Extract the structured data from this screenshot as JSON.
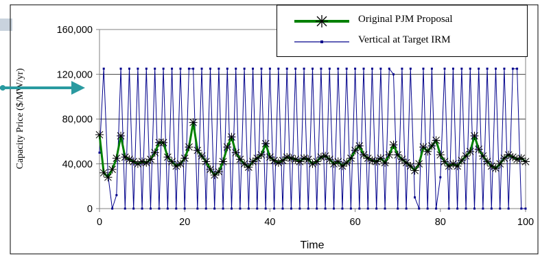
{
  "chart_data": {
    "type": "line",
    "title": "",
    "xlabel": "Time",
    "ylabel": "Capacity Price ($/MW/yr)",
    "xlim": [
      0,
      100
    ],
    "ylim": [
      0,
      160000
    ],
    "x_ticks": [
      "0",
      "20",
      "40",
      "60",
      "80",
      "100"
    ],
    "y_ticks": [
      "0",
      "40,000",
      "80,000",
      "120,000",
      "160,000"
    ],
    "grid": "horizontal",
    "legend_position": "top-right",
    "series": [
      {
        "name": "Original PJM Proposal",
        "color": "#008000",
        "marker": "asterisk",
        "x": [
          0,
          1,
          2,
          3,
          4,
          5,
          6,
          7,
          8,
          9,
          10,
          11,
          12,
          13,
          14,
          15,
          16,
          17,
          18,
          19,
          20,
          21,
          22,
          23,
          24,
          25,
          26,
          27,
          28,
          29,
          30,
          31,
          32,
          33,
          34,
          35,
          36,
          37,
          38,
          39,
          40,
          41,
          42,
          43,
          44,
          45,
          46,
          47,
          48,
          49,
          50,
          51,
          52,
          53,
          54,
          55,
          56,
          57,
          58,
          59,
          60,
          61,
          62,
          63,
          64,
          65,
          66,
          67,
          68,
          69,
          70,
          71,
          72,
          73,
          74,
          75,
          76,
          77,
          78,
          79,
          80,
          81,
          82,
          83,
          84,
          85,
          86,
          87,
          88,
          89,
          90,
          91,
          92,
          93,
          94,
          95,
          96,
          97,
          98,
          99,
          100
        ],
        "values": [
          66000,
          32000,
          28000,
          35000,
          45000,
          65000,
          46000,
          44000,
          42000,
          40000,
          42000,
          41000,
          44000,
          50000,
          59000,
          59000,
          46000,
          42000,
          38000,
          40000,
          45000,
          55000,
          77000,
          52000,
          47000,
          42000,
          35000,
          30000,
          33000,
          42000,
          55000,
          64000,
          50000,
          44000,
          40000,
          37000,
          42000,
          45000,
          48000,
          58000,
          46000,
          43000,
          41000,
          43000,
          46000,
          45000,
          44000,
          42000,
          45000,
          44000,
          40000,
          42000,
          46000,
          47000,
          44000,
          40000,
          42000,
          38000,
          41000,
          45000,
          52000,
          56000,
          48000,
          45000,
          43000,
          42000,
          45000,
          41000,
          48000,
          57000,
          48000,
          44000,
          41000,
          38000,
          34000,
          40000,
          55000,
          51000,
          56000,
          61000,
          48000,
          42000,
          38000,
          40000,
          38000,
          43000,
          47000,
          51000,
          65000,
          53000,
          47000,
          42000,
          38000,
          36000,
          40000,
          45000,
          48000,
          46000,
          44000,
          45000,
          42000
        ]
      },
      {
        "name": "Vertical at Target IRM",
        "color": "#00008b",
        "marker": "dot",
        "x": [
          0,
          1,
          2,
          3,
          4,
          5,
          6,
          7,
          8,
          9,
          10,
          11,
          12,
          13,
          14,
          15,
          16,
          17,
          18,
          19,
          20,
          21,
          22,
          23,
          24,
          25,
          26,
          27,
          28,
          29,
          30,
          31,
          32,
          33,
          34,
          35,
          36,
          37,
          38,
          39,
          40,
          41,
          42,
          43,
          44,
          45,
          46,
          47,
          48,
          49,
          50,
          51,
          52,
          53,
          54,
          55,
          56,
          57,
          58,
          59,
          60,
          61,
          62,
          63,
          64,
          65,
          66,
          67,
          68,
          69,
          70,
          71,
          72,
          73,
          74,
          75,
          76,
          77,
          78,
          79,
          80,
          81,
          82,
          83,
          84,
          85,
          86,
          87,
          88,
          89,
          90,
          91,
          92,
          93,
          94,
          95,
          96,
          97,
          98,
          99,
          100
        ],
        "values": [
          50000,
          125000,
          30000,
          0,
          12000,
          125000,
          0,
          125000,
          0,
          125000,
          0,
          125000,
          0,
          125000,
          0,
          125000,
          0,
          125000,
          0,
          125000,
          0,
          125000,
          125000,
          0,
          125000,
          0,
          125000,
          0,
          125000,
          0,
          125000,
          0,
          125000,
          0,
          125000,
          0,
          125000,
          0,
          125000,
          0,
          125000,
          0,
          125000,
          0,
          125000,
          0,
          125000,
          0,
          125000,
          0,
          125000,
          0,
          125000,
          0,
          125000,
          0,
          125000,
          0,
          125000,
          0,
          125000,
          0,
          125000,
          0,
          125000,
          0,
          125000,
          0,
          125000,
          120000,
          0,
          125000,
          0,
          125000,
          10000,
          0,
          125000,
          0,
          125000,
          0,
          28000,
          125000,
          0,
          125000,
          0,
          125000,
          0,
          125000,
          0,
          125000,
          0,
          125000,
          0,
          125000,
          0,
          125000,
          0,
          125000,
          125000,
          0,
          0
        ]
      }
    ]
  }
}
